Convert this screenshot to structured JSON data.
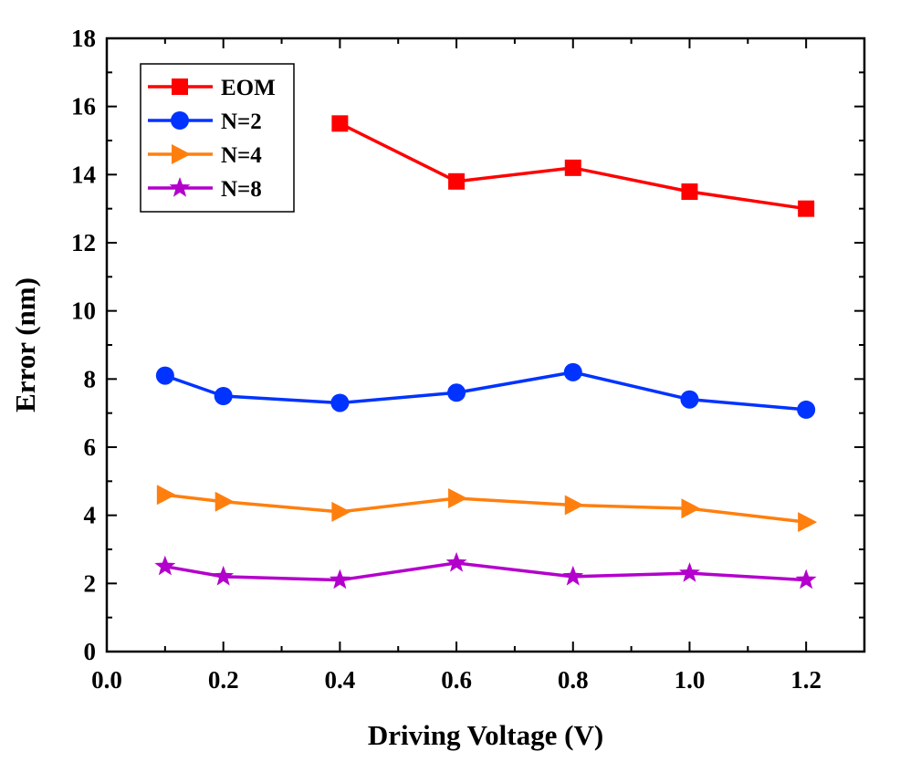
{
  "chart_data": {
    "type": "line",
    "title": "",
    "xlabel": "Driving Voltage (V)",
    "ylabel": "Error (nm)",
    "xlim": [
      0.0,
      1.3
    ],
    "ylim": [
      0,
      18
    ],
    "xticks": [
      0.0,
      0.2,
      0.4,
      0.6,
      0.8,
      1.0,
      1.2
    ],
    "xtick_labels": [
      "0.0",
      "0.2",
      "0.4",
      "0.6",
      "0.8",
      "1.0",
      "1.2"
    ],
    "yticks": [
      0,
      2,
      4,
      6,
      8,
      10,
      12,
      14,
      16,
      18
    ],
    "ytick_labels": [
      "0",
      "2",
      "4",
      "6",
      "8",
      "10",
      "12",
      "14",
      "16",
      "18"
    ],
    "grid": false,
    "legend_position": "top-left",
    "series": [
      {
        "name": "EOM",
        "color": "#ff0000",
        "marker": "square",
        "x": [
          0.4,
          0.6,
          0.8,
          1.0,
          1.2
        ],
        "values": [
          15.5,
          13.8,
          14.2,
          13.5,
          13.0
        ]
      },
      {
        "name": "N=2",
        "color": "#0033ff",
        "marker": "circle",
        "x": [
          0.1,
          0.2,
          0.4,
          0.6,
          0.8,
          1.0,
          1.2
        ],
        "values": [
          8.1,
          7.5,
          7.3,
          7.6,
          8.2,
          7.4,
          7.1
        ]
      },
      {
        "name": "N=4",
        "color": "#ff7f0e",
        "marker": "triangle-right",
        "x": [
          0.1,
          0.2,
          0.4,
          0.6,
          0.8,
          1.0,
          1.2
        ],
        "values": [
          4.6,
          4.4,
          4.1,
          4.5,
          4.3,
          4.2,
          3.8
        ]
      },
      {
        "name": "N=8",
        "color": "#b300cc",
        "marker": "star",
        "x": [
          0.1,
          0.2,
          0.4,
          0.6,
          0.8,
          1.0,
          1.2
        ],
        "values": [
          2.5,
          2.2,
          2.1,
          2.6,
          2.2,
          2.3,
          2.1
        ]
      }
    ]
  }
}
